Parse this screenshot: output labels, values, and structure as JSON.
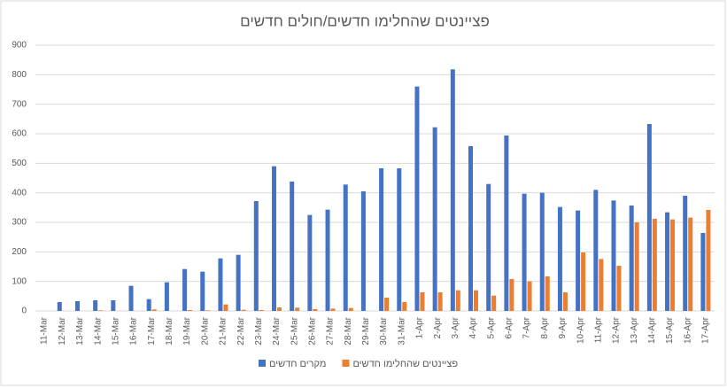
{
  "chart_data": {
    "type": "bar",
    "title": "פציינטים שהחלימו חדשים/חולים חדשים",
    "categories": [
      "11-Mar",
      "12-Mar",
      "13-Mar",
      "14-Mar",
      "15-Mar",
      "16-Mar",
      "17-Mar",
      "18-Mar",
      "19-Mar",
      "20-Mar",
      "21-Mar",
      "22-Mar",
      "23-Mar",
      "24-Mar",
      "25-Mar",
      "26-Mar",
      "27-Mar",
      "28-Mar",
      "29-Mar",
      "30-Mar",
      "31-Mar",
      "1-Apr",
      "2-Apr",
      "3-Apr",
      "4-Apr",
      "5-Apr",
      "6-Apr",
      "7-Apr",
      "8-Apr",
      "9-Apr",
      "10-Apr",
      "11-Apr",
      "12-Apr",
      "13-Apr",
      "14-Apr",
      "15-Apr",
      "16-Apr",
      "17-Apr"
    ],
    "series": [
      {
        "name": "מקרים חדשים",
        "color": "#4472c4",
        "values": [
          0,
          30,
          33,
          36,
          36,
          85,
          40,
          97,
          142,
          133,
          178,
          190,
          372,
          490,
          438,
          325,
          343,
          428,
          405,
          483,
          483,
          760,
          622,
          818,
          558,
          430,
          594,
          397,
          400,
          352,
          340,
          410,
          374,
          357,
          633,
          334,
          390,
          264
        ]
      },
      {
        "name": "פציינטים שהחלימו חדשים",
        "color": "#ed7d31",
        "values": [
          0,
          0,
          0,
          2,
          0,
          0,
          5,
          0,
          3,
          2,
          22,
          4,
          3,
          12,
          11,
          6,
          8,
          10,
          0,
          45,
          30,
          63,
          63,
          70,
          70,
          52,
          108,
          100,
          117,
          63,
          198,
          176,
          153,
          300,
          312,
          310,
          316,
          342
        ]
      }
    ],
    "ylim": [
      0,
      900
    ],
    "yticks": [
      0,
      100,
      200,
      300,
      400,
      500,
      600,
      700,
      800,
      900
    ],
    "grid": true,
    "legend": "bottom"
  }
}
